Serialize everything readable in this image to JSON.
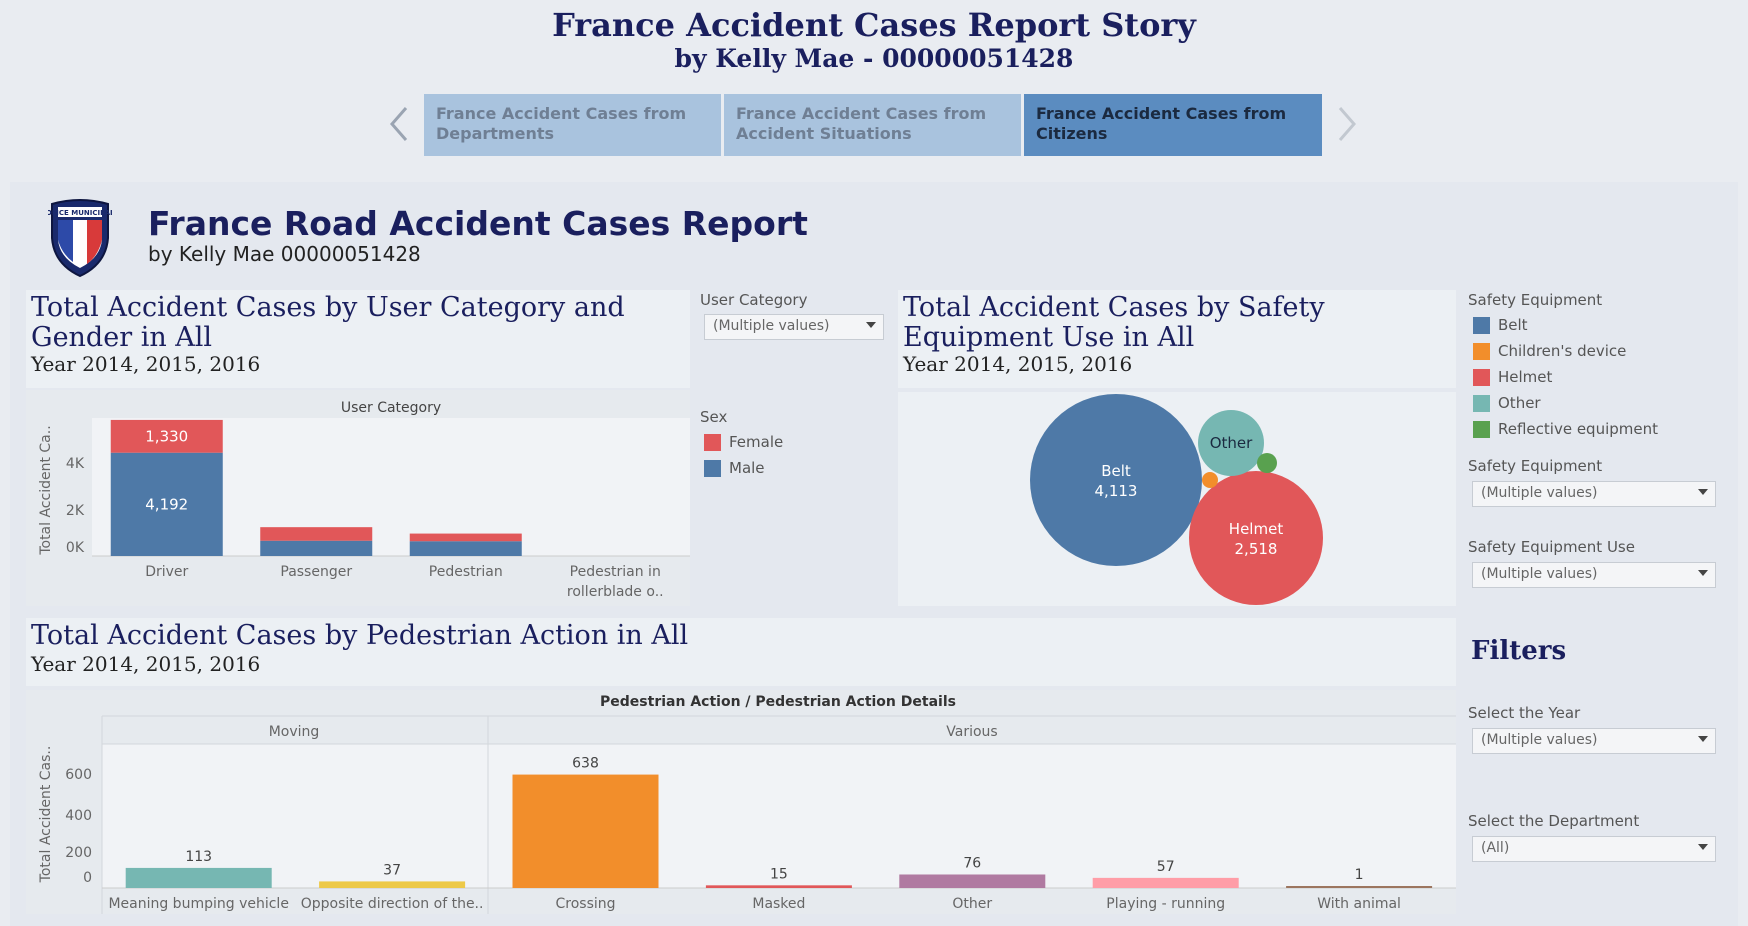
{
  "story": {
    "title": "France Accident Cases Report Story",
    "subtitle": "by Kelly Mae - 00000051428",
    "tabs": [
      {
        "label": "France Accident Cases from Departments",
        "active": false
      },
      {
        "label": "France Accident Cases from Accident Situations",
        "active": false
      },
      {
        "label": "France Accident Cases from Citizens",
        "active": true
      }
    ],
    "prev_icon": "chevron-left-icon",
    "next_icon": "chevron-right-icon"
  },
  "dashboard": {
    "title": "France Road Accident Cases Report",
    "author": "by Kelly Mae 00000051428",
    "logo_text": "POLICE MUNICIPALE"
  },
  "panel_user": {
    "title": "Total Accident Cases by User Category and Gender in All",
    "subtitle": "Year 2014, 2015, 2016",
    "header": "User Category",
    "ylabel": "Total Accident Ca..",
    "ticks": [
      "4K",
      "2K",
      "0K"
    ],
    "filter_label": "User Category",
    "filter_value": "(Multiple values)",
    "legend_title": "Sex",
    "legend": [
      {
        "label": "Female",
        "color": "#e15759"
      },
      {
        "label": "Male",
        "color": "#4e79a7"
      }
    ]
  },
  "panel_safety": {
    "title": "Total Accident Cases by Safety Equipment Use in All",
    "subtitle": "Year 2014, 2015, 2016",
    "legend_title": "Safety Equipment",
    "legend": [
      {
        "label": "Belt",
        "color": "#4e79a7"
      },
      {
        "label": "Children's device",
        "color": "#f28e2b"
      },
      {
        "label": "Helmet",
        "color": "#e15759"
      },
      {
        "label": "Other",
        "color": "#76b7b2"
      },
      {
        "label": "Reflective equipment",
        "color": "#59a14f"
      }
    ],
    "filter1_label": "Safety Equipment",
    "filter1_value": "(Multiple values)",
    "filter2_label": "Safety Equipment Use",
    "filter2_value": "(Multiple values)"
  },
  "panel_ped": {
    "title": "Total Accident Cases by Pedestrian Action in All",
    "subtitle": "Year 2014, 2015, 2016",
    "header": "Pedestrian Action  /  Pedestrian Action Details",
    "group1": "Moving",
    "group2": "Various",
    "ylabel": "Total Accident Cas..",
    "ticks": [
      "600",
      "400",
      "200",
      "0"
    ]
  },
  "filters": {
    "heading": "Filters",
    "year_label": "Select the Year",
    "year_value": "(Multiple values)",
    "dept_label": "Select the Department",
    "dept_value": "(All)"
  },
  "chart_data": [
    {
      "type": "bar",
      "stacked": true,
      "title": "Total Accident Cases by User Category and Gender in All",
      "categories": [
        "Driver",
        "Passenger",
        "Pedestrian",
        "Pedestrian in rollerblade o.."
      ],
      "series": [
        {
          "name": "Male",
          "color": "#4e79a7",
          "values": [
            4192,
            620,
            600,
            0
          ]
        },
        {
          "name": "Female",
          "color": "#e15759",
          "values": [
            1330,
            550,
            310,
            0
          ]
        }
      ],
      "data_labels": [
        "1,330",
        "4,192"
      ],
      "ylabel": "Total Accident Ca..",
      "ylim": [
        0,
        5600
      ]
    },
    {
      "type": "bubble",
      "title": "Total Accident Cases by Safety Equipment Use in All",
      "items": [
        {
          "name": "Belt",
          "value": 4113,
          "value_label": "4,113",
          "color": "#4e79a7",
          "label": "Belt"
        },
        {
          "name": "Helmet",
          "value": 2518,
          "value_label": "2,518",
          "color": "#e15759",
          "label": "Helmet"
        },
        {
          "name": "Other",
          "value": 620,
          "color": "#76b7b2",
          "label": "Other"
        },
        {
          "name": "Children's device",
          "value": 40,
          "color": "#f28e2b",
          "label": ""
        },
        {
          "name": "Reflective equipment",
          "value": 50,
          "color": "#59a14f",
          "label": ""
        }
      ]
    },
    {
      "type": "bar",
      "title": "Total Accident Cases by Pedestrian Action in All",
      "categories": [
        "Meaning bumping vehicle",
        "Opposite direction of the..",
        "Crossing",
        "Masked",
        "Other",
        "Playing - running",
        "With animal"
      ],
      "groups": [
        "Moving",
        "Moving",
        "Various",
        "Various",
        "Various",
        "Various",
        "Various"
      ],
      "values": [
        113,
        37,
        638,
        15,
        76,
        57,
        1
      ],
      "value_labels": [
        "113",
        "37",
        "638",
        "15",
        "76",
        "57",
        "1"
      ],
      "colors": [
        "#76b7b2",
        "#edc948",
        "#f28e2b",
        "#e15759",
        "#b07aa1",
        "#ff9da7",
        "#9c755f"
      ],
      "ylabel": "Total Accident Cas..",
      "ylim": [
        0,
        720
      ]
    }
  ]
}
